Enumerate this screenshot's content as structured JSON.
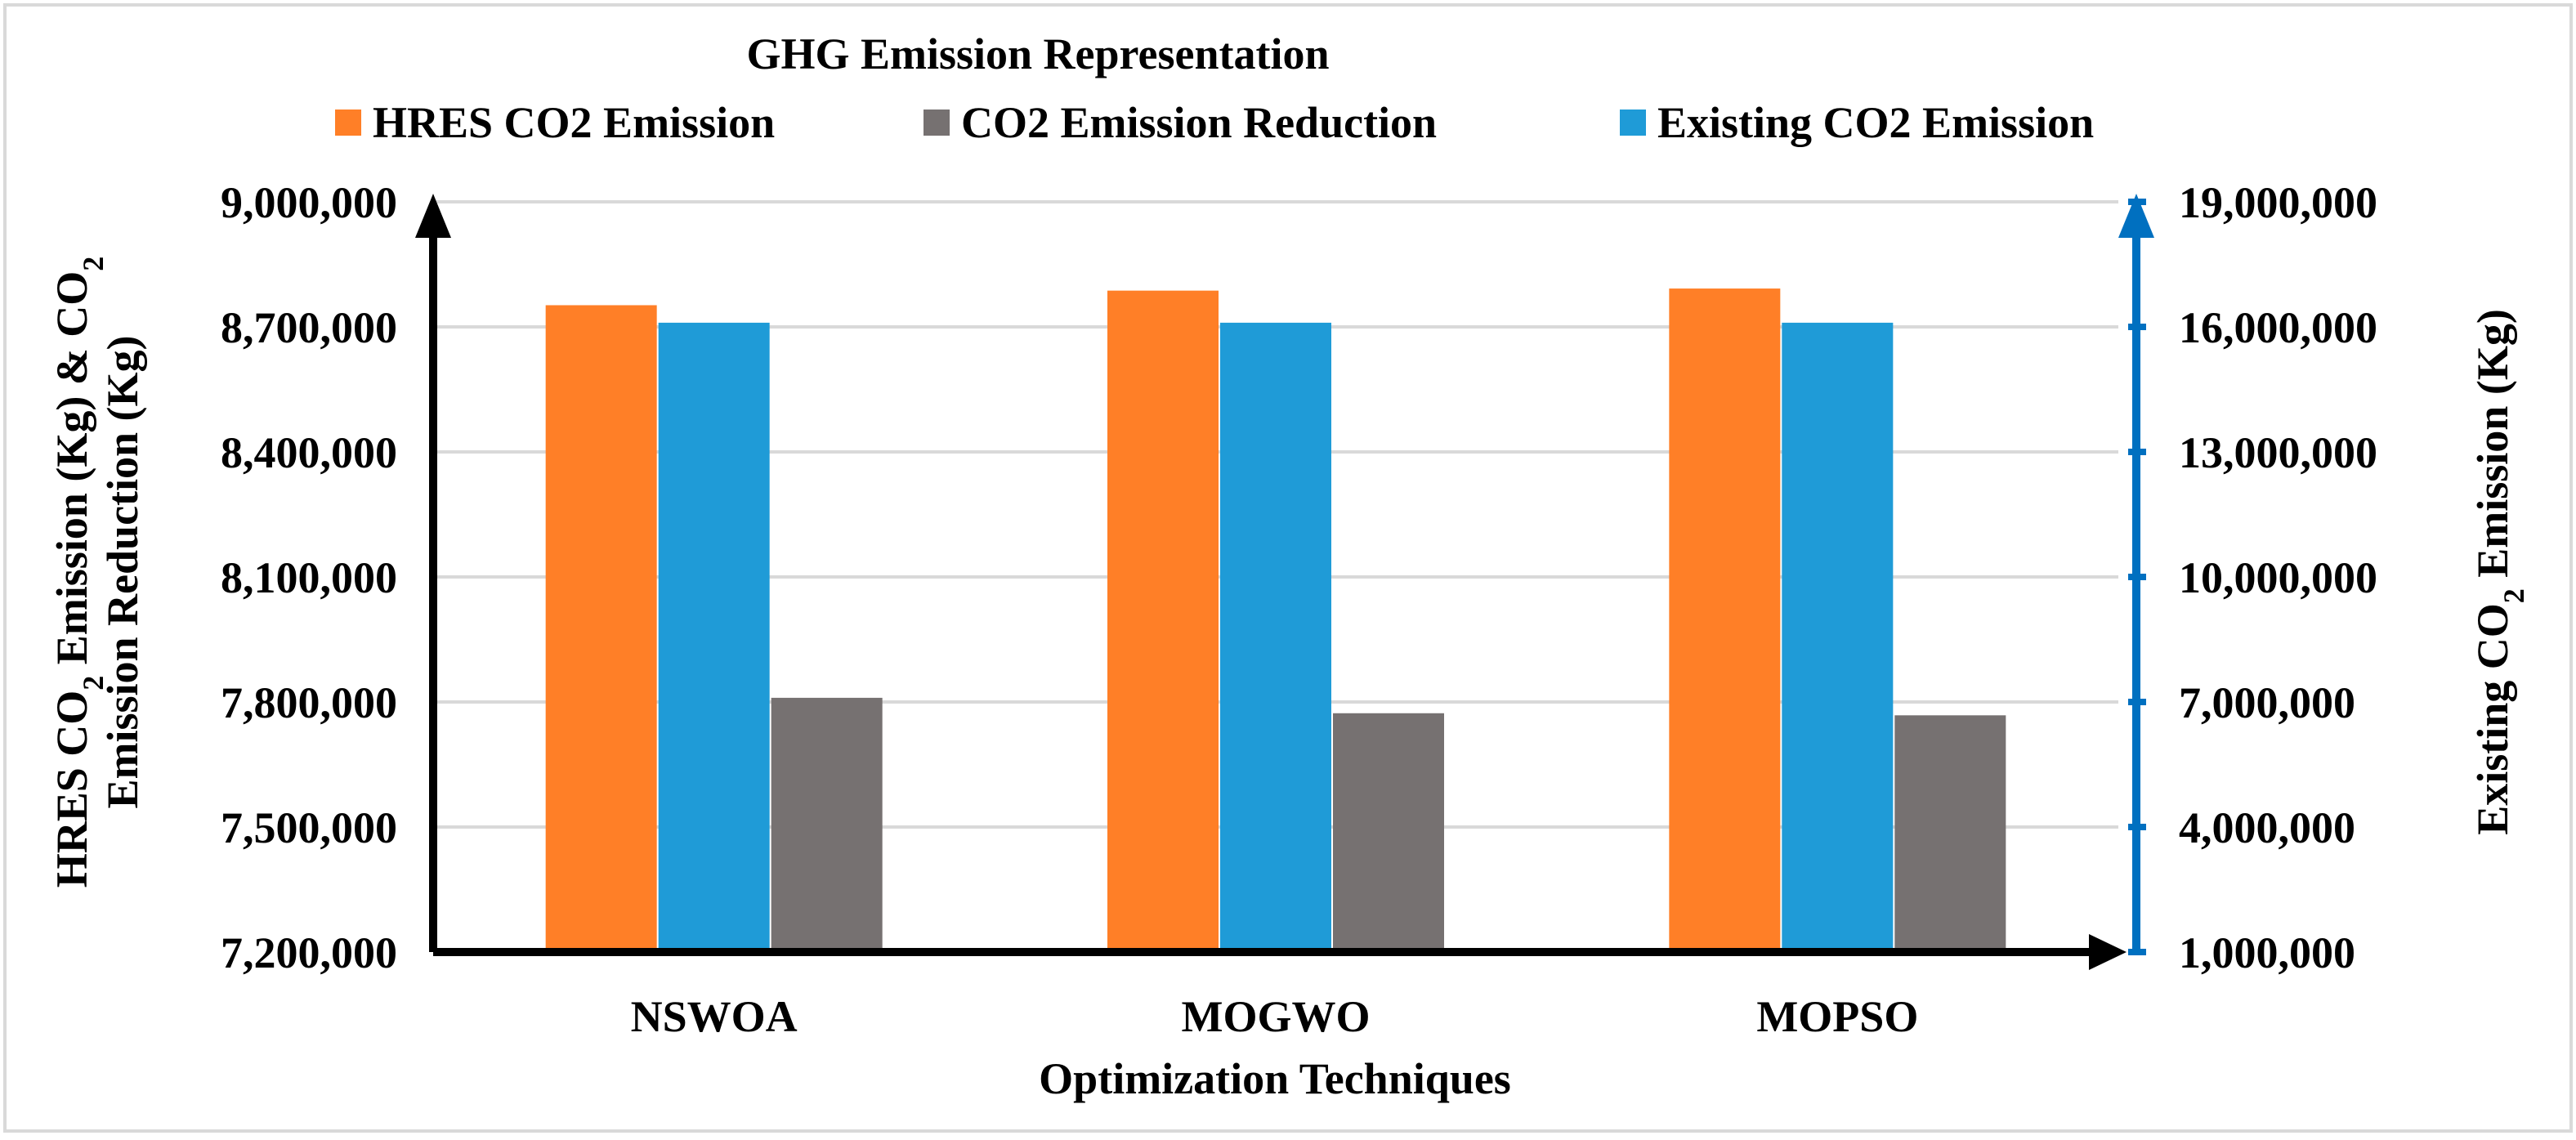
{
  "chart_data": {
    "type": "bar",
    "title": "GHG Emission Representation",
    "categories": [
      "NSWOA",
      "MOGWO",
      "MOPSO"
    ],
    "xlabel": "Optimization Techniques",
    "ylabel_left_line1": "HRES CO",
    "ylabel_left_sub1": "2",
    "ylabel_left_line1_rest": " Emission (Kg)  & CO",
    "ylabel_left_sub2": "2",
    "ylabel_left_line2": "Emission Reduction (Kg)",
    "ylabel_right": "Existing CO",
    "ylabel_right_sub": "2",
    "ylabel_right_rest": " Emission (Kg)",
    "ylim_left": [
      7200000,
      9000000
    ],
    "yticks_left": [
      "7,200,000",
      "7,500,000",
      "7,800,000",
      "8,100,000",
      "8,400,000",
      "8,700,000",
      "9,000,000"
    ],
    "ylim_right": [
      1000000,
      19000000
    ],
    "yticks_right": [
      "1,000,000",
      "4,000,000",
      "7,000,000",
      "10,000,000",
      "13,000,000",
      "16,000,000",
      "19,000,000"
    ],
    "grid": true,
    "legend_position": "top",
    "series": [
      {
        "name": "HRES CO2 Emission",
        "axis": "left",
        "color": "#FF7F27",
        "values": [
          8752000,
          8787000,
          8792000
        ]
      },
      {
        "name": "Existing CO2 Emission",
        "axis": "right",
        "color": "#1F9BD7",
        "values": [
          16100000,
          16100000,
          16100000
        ]
      },
      {
        "name": "CO2 Emission Reduction",
        "axis": "left",
        "color": "#767171",
        "values": [
          7810000,
          7773000,
          7768000
        ]
      }
    ],
    "legend_order": [
      "HRES CO2 Emission",
      "CO2 Emission Reduction",
      "Existing CO2 Emission"
    ],
    "colors": {
      "left_axis": "#000000",
      "right_axis": "#0070C0",
      "grid": "#D9D9D9",
      "border": "#D9D9D9"
    }
  }
}
